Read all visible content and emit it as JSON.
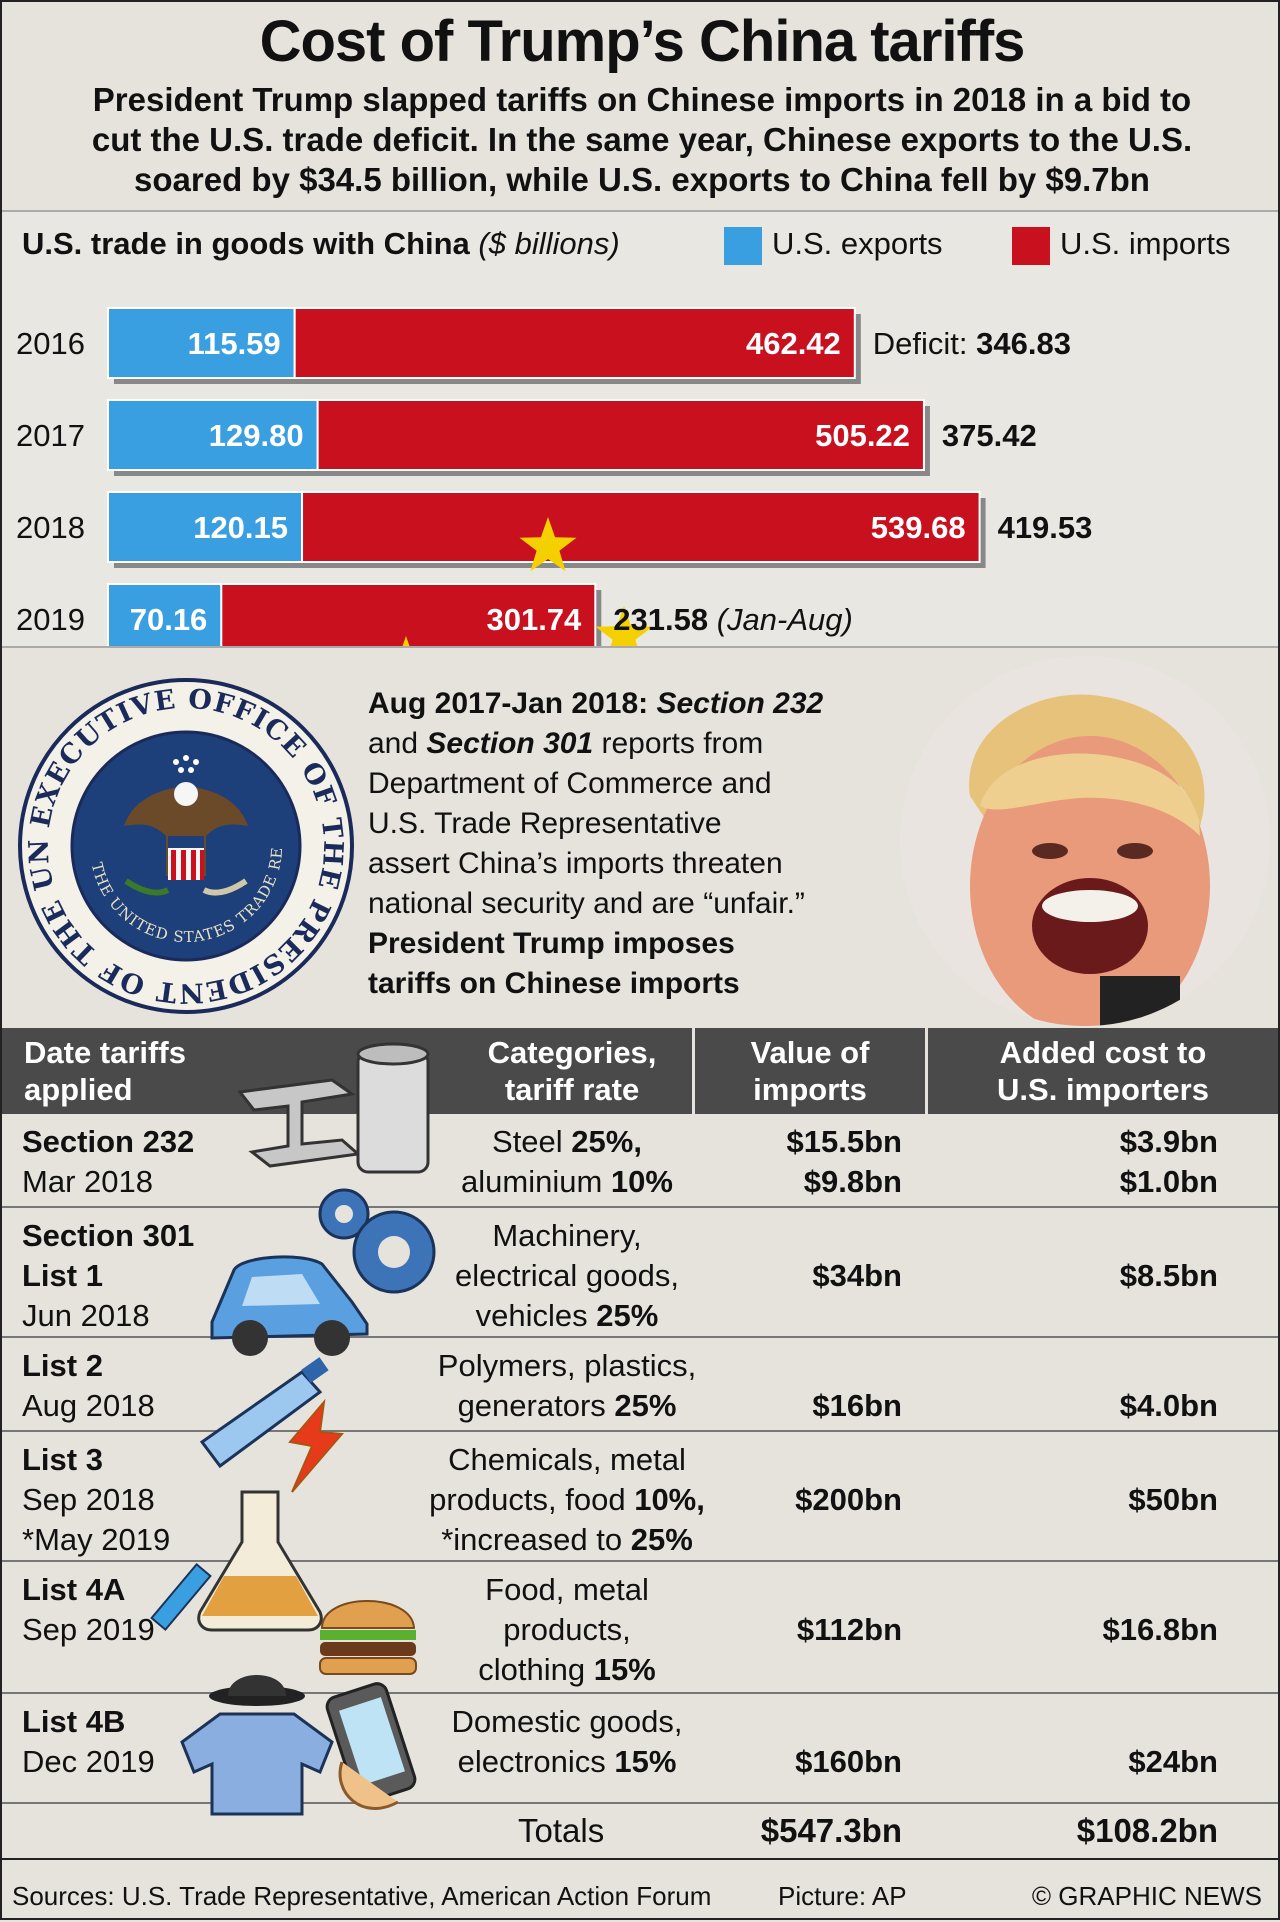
{
  "header": {
    "title": "Cost of Trump’s China tariffs",
    "subtitle_lines": [
      "President Trump slapped tariffs on Chinese imports in 2018 in a bid to",
      "cut the U.S. trade deficit. In the same year, Chinese exports to the U.S.",
      "soared by $34.5 billion, while U.S. exports to China fell by $9.7bn"
    ]
  },
  "chart_data": {
    "type": "bar",
    "title": "U.S. trade in goods with China",
    "unit": "($ billions)",
    "legend": [
      "U.S. exports",
      "U.S. imports"
    ],
    "categories": [
      "2016",
      "2017",
      "2018",
      "2019"
    ],
    "series": [
      {
        "name": "U.S. exports",
        "color": "#3a9fe0",
        "values": [
          115.59,
          129.8,
          120.15,
          70.16
        ]
      },
      {
        "name": "U.S. imports",
        "color": "#c8101e",
        "values": [
          462.42,
          505.22,
          539.68,
          301.74
        ]
      }
    ],
    "deficit": [
      346.83,
      375.42,
      419.53,
      231.58
    ],
    "labels": {
      "exports": [
        "115.59",
        "129.80",
        "120.15",
        "70.16"
      ],
      "imports": [
        "462.42",
        "505.22",
        "539.68",
        "301.74"
      ],
      "deficit": [
        "346.83",
        "375.42",
        "419.53",
        "231.58"
      ]
    },
    "deficit_prefix": "Deficit:",
    "note_2019": "(Jan-Aug)",
    "colors": {
      "exports": "#3a9fe0",
      "imports": "#c8101e",
      "star": "#f5d000"
    }
  },
  "event": {
    "lead": "Aug 2017-Jan 2018:",
    "sec232": "Section 232",
    "and": "and",
    "sec301": "Section 301",
    "body1": "reports from",
    "body2": "Department of Commerce and",
    "body3": "U.S. Trade Representative",
    "body4": "assert China’s imports threaten",
    "body5": "national security and are “unfair.”",
    "bold1": "President Trump imposes",
    "bold2": "tariffs on Chinese imports"
  },
  "seal": {
    "outer_text": "EXECUTIVE OFFICE OF THE PRESIDENT OF THE UNITED STATES",
    "inner_text": "THE UNITED STATES TRADE REPRESENTATIVE"
  },
  "table": {
    "headers": {
      "date": [
        "Date tariffs",
        "applied"
      ],
      "categories": [
        "Categories,",
        "tariff rate"
      ],
      "value": [
        "Value of",
        "imports"
      ],
      "cost": [
        "Added cost to",
        "U.S. importers"
      ]
    },
    "rows": [
      {
        "name_bold": [
          "Section 232"
        ],
        "date": [
          "Mar 2018"
        ],
        "cat": [
          [
            "Steel ",
            "25%,"
          ],
          [
            "aluminium ",
            "10%"
          ]
        ],
        "value": [
          "$15.5bn",
          "$9.8bn"
        ],
        "cost": [
          "$3.9bn",
          "$1.0bn"
        ]
      },
      {
        "name_bold": [
          "Section 301",
          "List 1"
        ],
        "date": [
          "Jun 2018"
        ],
        "cat": [
          [
            "Machinery,",
            ""
          ],
          [
            "electrical goods,",
            ""
          ],
          [
            "vehicles ",
            "25%"
          ]
        ],
        "value": [
          "$34bn"
        ],
        "cost": [
          "$8.5bn"
        ]
      },
      {
        "name_bold": [
          "List 2"
        ],
        "date": [
          "Aug 2018"
        ],
        "cat": [
          [
            "Polymers, plastics,",
            ""
          ],
          [
            "generators ",
            "25%"
          ]
        ],
        "value": [
          "$16bn"
        ],
        "cost": [
          "$4.0bn"
        ]
      },
      {
        "name_bold": [
          "List 3"
        ],
        "date": [
          "Sep 2018",
          "*May 2019"
        ],
        "cat": [
          [
            "Chemicals, metal",
            ""
          ],
          [
            "products, food ",
            "10%,"
          ],
          [
            "*increased to ",
            "25%"
          ]
        ],
        "value": [
          "$200bn"
        ],
        "cost": [
          "$50bn"
        ]
      },
      {
        "name_bold": [
          "List 4A"
        ],
        "date": [
          "Sep 2019"
        ],
        "cat": [
          [
            "Food, metal",
            ""
          ],
          [
            "products,",
            ""
          ],
          [
            "clothing ",
            "15%"
          ]
        ],
        "value": [
          "$112bn"
        ],
        "cost": [
          "$16.8bn"
        ]
      },
      {
        "name_bold": [
          "List 4B"
        ],
        "date": [
          "Dec 2019"
        ],
        "cat": [
          [
            "Domestic goods,",
            ""
          ],
          [
            "electronics ",
            "15%"
          ]
        ],
        "value": [
          "$160bn"
        ],
        "cost": [
          "$24bn"
        ]
      }
    ],
    "totals": {
      "label": "Totals",
      "value": "$547.3bn",
      "cost": "$108.2bn"
    }
  },
  "footer": {
    "sources": "Sources: U.S. Trade Representative, American Action Forum",
    "picture": "Picture: AP",
    "credit": "© GRAPHIC NEWS"
  }
}
